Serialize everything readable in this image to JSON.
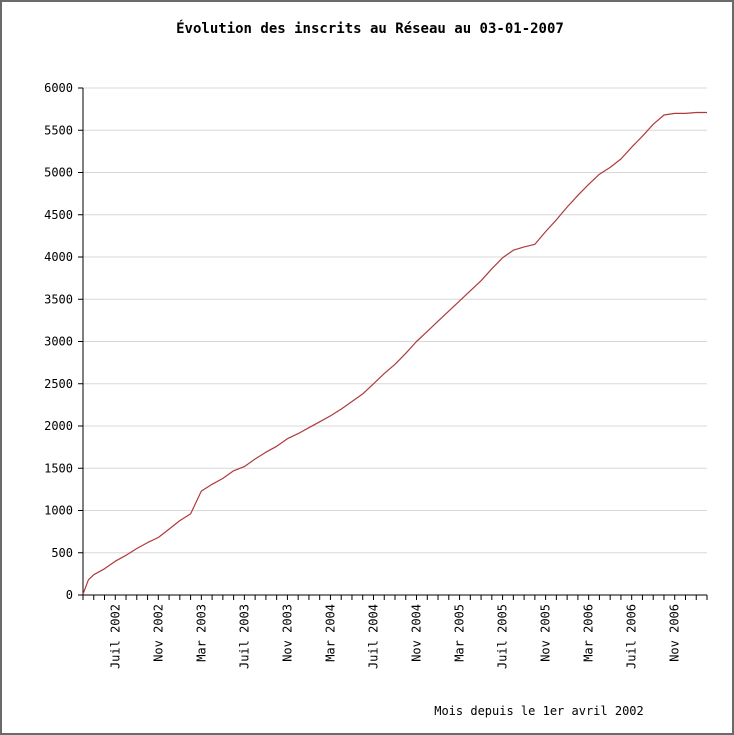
{
  "colors": {
    "line": "#b03a3a",
    "grid": "#d8d8d8",
    "axis": "#000000",
    "border": "#6a6a6a",
    "background": "#ffffff"
  },
  "chart_data": {
    "type": "line",
    "title": "Évolution des inscrits au Réseau au 03-01-2007",
    "xlabel": "Mois depuis le 1er avril 2002",
    "ylabel": "",
    "ylim": [
      0,
      6000
    ],
    "yticks": [
      0,
      500,
      1000,
      1500,
      2000,
      2500,
      3000,
      3500,
      4000,
      4500,
      5000,
      5500,
      6000
    ],
    "grid": "horizontal",
    "x_start": "2002-04",
    "x_tick_labels": [
      {
        "month_index": 3,
        "label": "Juil 2002"
      },
      {
        "month_index": 7,
        "label": "Nov 2002"
      },
      {
        "month_index": 11,
        "label": "Mar 2003"
      },
      {
        "month_index": 15,
        "label": "Juil 2003"
      },
      {
        "month_index": 19,
        "label": "Nov 2003"
      },
      {
        "month_index": 23,
        "label": "Mar 2004"
      },
      {
        "month_index": 27,
        "label": "Juil 2004"
      },
      {
        "month_index": 31,
        "label": "Nov 2004"
      },
      {
        "month_index": 35,
        "label": "Mar 2005"
      },
      {
        "month_index": 39,
        "label": "Juil 2005"
      },
      {
        "month_index": 43,
        "label": "Nov 2005"
      },
      {
        "month_index": 47,
        "label": "Mar 2006"
      },
      {
        "month_index": 51,
        "label": "Juil 2006"
      },
      {
        "month_index": 55,
        "label": "Nov 2006"
      }
    ],
    "series": [
      {
        "x": [
          0,
          0.5,
          1,
          2,
          3,
          4,
          5,
          6,
          7,
          8,
          9,
          10,
          11,
          12,
          13,
          14,
          15,
          16,
          17,
          18,
          19,
          20,
          21,
          22,
          23,
          24,
          25,
          26,
          27,
          28,
          29,
          30,
          31,
          32,
          33,
          34,
          35,
          36,
          37,
          38,
          39,
          40,
          41,
          42,
          43,
          44,
          45,
          46,
          47,
          48,
          49,
          50,
          51,
          52,
          53,
          54,
          55,
          56,
          57,
          58
        ],
        "values": [
          10,
          180,
          240,
          310,
          400,
          470,
          550,
          620,
          680,
          780,
          880,
          960,
          1230,
          1310,
          1380,
          1470,
          1520,
          1610,
          1690,
          1760,
          1850,
          1910,
          1980,
          2050,
          2120,
          2200,
          2290,
          2380,
          2500,
          2620,
          2730,
          2860,
          3000,
          3120,
          3240,
          3360,
          3480,
          3600,
          3720,
          3860,
          3990,
          4080,
          4120,
          4150,
          4300,
          4440,
          4590,
          4730,
          4860,
          4980,
          5060,
          5160,
          5300,
          5430,
          5570,
          5680,
          5700,
          5700,
          5710,
          5710
        ]
      }
    ]
  }
}
